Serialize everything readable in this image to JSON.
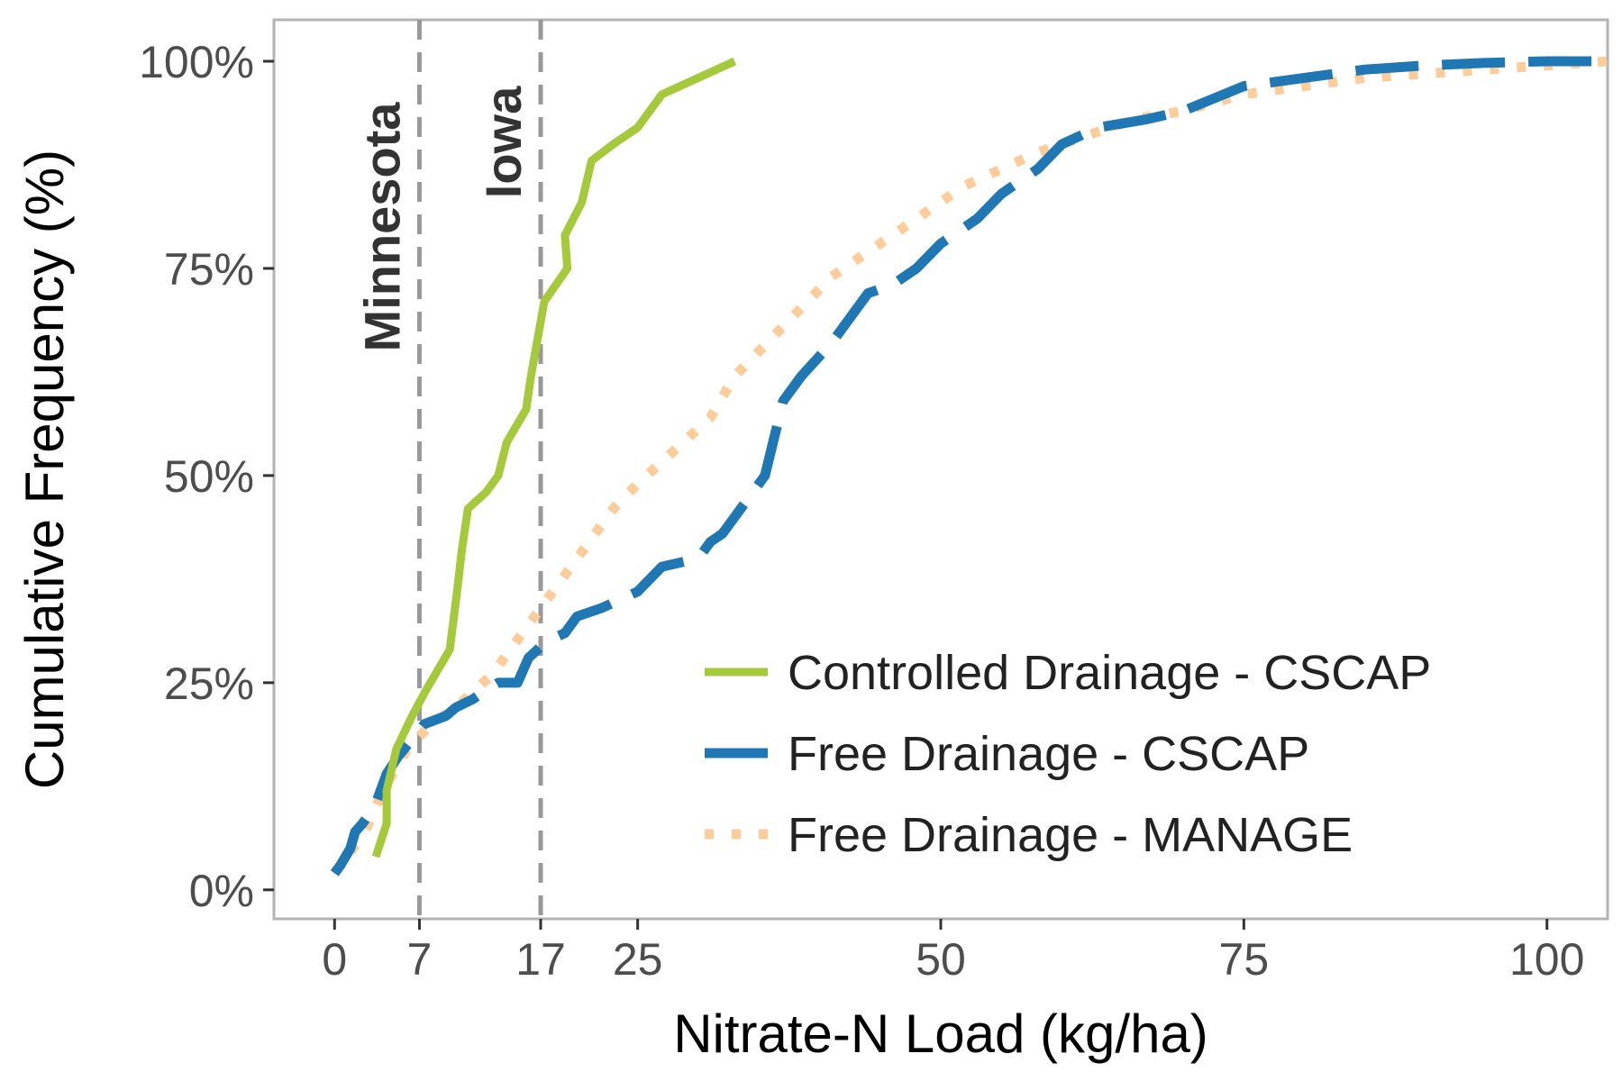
{
  "chart_data": {
    "type": "line",
    "xlabel": "Nitrate-N Load (kg/ha)",
    "ylabel": "Cumulative Frequency (%)",
    "xlim": [
      -5,
      105
    ],
    "ylim": [
      -3.5,
      105
    ],
    "x_ticks": [
      0,
      7,
      17,
      25,
      50,
      75,
      100
    ],
    "x_tick_labels": [
      "0",
      "7",
      "17",
      "25",
      "50",
      "75",
      "100"
    ],
    "y_ticks": [
      0,
      25,
      50,
      75,
      100
    ],
    "y_tick_labels": [
      "0%",
      "25%",
      "50%",
      "75%",
      "100%"
    ],
    "grid": false,
    "legend_position": "bottom-right",
    "reference_lines": [
      {
        "x": 7,
        "label": "Minnesota",
        "color": "#999999",
        "style": "dashed"
      },
      {
        "x": 17,
        "label": "Iowa",
        "color": "#999999",
        "style": "dashed"
      }
    ],
    "series": [
      {
        "name": "Controlled Drainage - CSCAP",
        "color": "#a4c93b",
        "style": "solid",
        "x": [
          3.4,
          4.3,
          4.3,
          5.1,
          6.4,
          7.5,
          9.5,
          10.1,
          10.5,
          11.0,
          12.5,
          13.5,
          14.2,
          15.8,
          16.2,
          17.3,
          19.2,
          19.0,
          20.4,
          21.2,
          23.0,
          25.0,
          27.0,
          30.0,
          33.0
        ],
        "y": [
          4,
          8,
          12,
          17,
          21,
          24,
          29,
          36,
          41,
          46,
          48,
          50,
          54,
          58,
          62,
          71,
          75,
          79,
          83,
          88,
          90,
          92,
          96,
          98,
          100
        ]
      },
      {
        "name": "Free Drainage - CSCAP",
        "color": "#1f77b4",
        "style": "dashed",
        "x": [
          0,
          0.5,
          1.3,
          1.7,
          2.3,
          3.3,
          4.3,
          5.2,
          6.3,
          7.4,
          9.2,
          10.0,
          11.4,
          12.4,
          13.5,
          15.1,
          16.0,
          17.5,
          19.0,
          20.0,
          22.0,
          25.0,
          27.0,
          30.0,
          31.0,
          32.0,
          34.5,
          35.5,
          36.0,
          37.0,
          38.5,
          41.0,
          43.0,
          44.0,
          46.0,
          48.0,
          50.0,
          53.0,
          55.0,
          58.0,
          60.0,
          63.0,
          67.0,
          70.0,
          75.0,
          80.0,
          85.0,
          90.0,
          95.0,
          100.0,
          105.0
        ],
        "y": [
          2,
          3,
          5,
          7,
          8,
          10,
          14,
          16,
          18,
          20,
          21,
          22,
          23,
          24,
          25,
          25,
          28,
          30,
          31,
          33,
          34,
          36,
          39,
          40,
          42,
          43,
          48,
          50,
          53,
          59,
          62,
          66,
          70,
          72,
          73,
          75,
          78,
          81,
          84,
          87,
          90,
          92,
          93,
          94,
          97,
          98,
          99,
          99.5,
          99.8,
          100,
          100
        ]
      },
      {
        "name": "Free Drainage - MANAGE",
        "color": "#fdcc9b",
        "style": "dotted",
        "x": [
          0,
          1.0,
          2.5,
          4.0,
          6.0,
          8.0,
          10.0,
          13.0,
          15.0,
          17.0,
          19.0,
          21.0,
          23.0,
          25.0,
          28.0,
          31.0,
          33.0,
          35.0,
          37.0,
          39.0,
          41.0,
          43.0,
          46.0,
          49.0,
          52.0,
          55.0,
          58.0,
          62.0,
          66.0,
          70.0,
          75.0,
          80.0,
          85.0,
          90.0,
          95.0,
          100.0,
          105.0
        ],
        "y": [
          2,
          4,
          7,
          12,
          17,
          20,
          22,
          26,
          30,
          34,
          38,
          42,
          46,
          49,
          53,
          57,
          62,
          65,
          68,
          71,
          74,
          76,
          79,
          82,
          85,
          87,
          89,
          91,
          93,
          94,
          96,
          97,
          98,
          98.5,
          99,
          99.5,
          100
        ]
      }
    ]
  }
}
